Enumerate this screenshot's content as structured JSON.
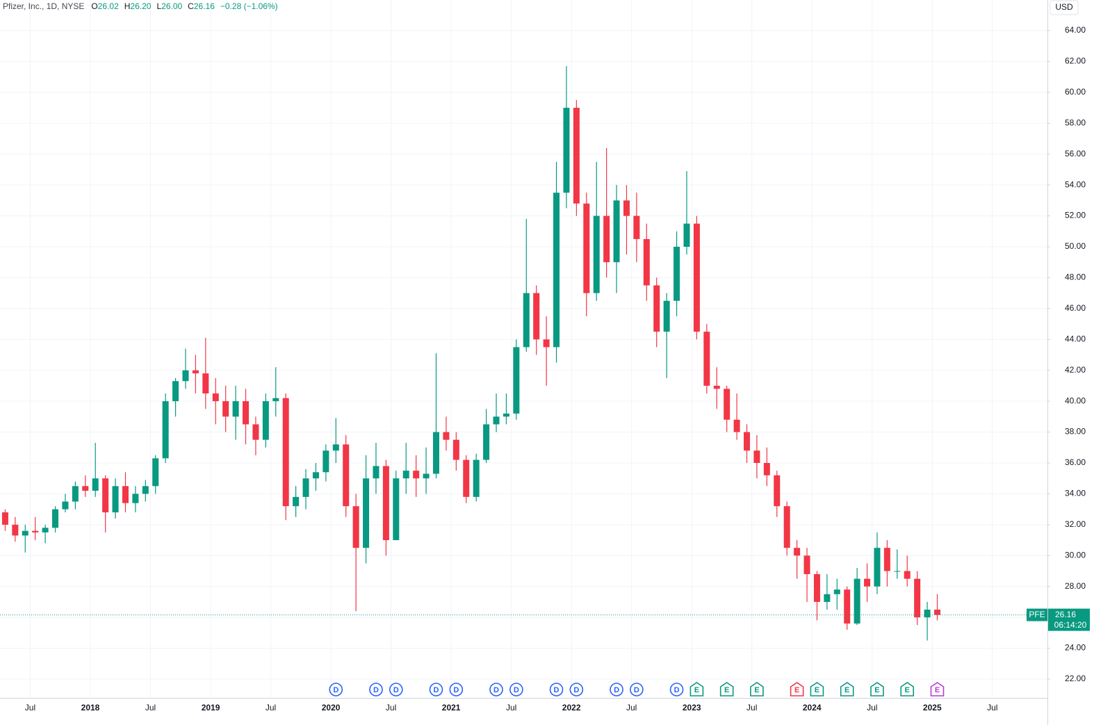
{
  "chart_data": {
    "type": "candlestick",
    "title": "Pfizer, Inc., 1D, NYSE",
    "legend_values": [
      {
        "key": "O",
        "value": "26.02"
      },
      {
        "key": "H",
        "value": "26.20"
      },
      {
        "key": "L",
        "value": "26.00"
      },
      {
        "key": "C",
        "value": "26.16"
      }
    ],
    "change": "−0.28 (−1.06%)",
    "currency": "USD",
    "symbol": "PFE",
    "last_price": {
      "value": 26.16,
      "label": "26.16"
    },
    "countdown": "06:14:20",
    "up_color": "#089981",
    "down_color": "#f23645",
    "grid": true,
    "x": [
      "2017-04",
      "2017-05",
      "2017-06",
      "2017-07",
      "2017-08",
      "2017-09",
      "2017-10",
      "2017-11",
      "2017-12",
      "2018-01",
      "2018-02",
      "2018-03",
      "2018-04",
      "2018-05",
      "2018-06",
      "2018-07",
      "2018-08",
      "2018-09",
      "2018-10",
      "2018-11",
      "2018-12",
      "2019-01",
      "2019-02",
      "2019-03",
      "2019-04",
      "2019-05",
      "2019-06",
      "2019-07",
      "2019-08",
      "2019-09",
      "2019-10",
      "2019-11",
      "2019-12",
      "2020-01",
      "2020-02",
      "2020-03",
      "2020-04",
      "2020-05",
      "2020-06",
      "2020-07",
      "2020-08",
      "2020-09",
      "2020-10",
      "2020-11",
      "2020-12",
      "2021-01",
      "2021-02",
      "2021-03",
      "2021-04",
      "2021-05",
      "2021-06",
      "2021-07",
      "2021-08",
      "2021-09",
      "2021-10",
      "2021-11",
      "2021-12",
      "2022-01",
      "2022-02",
      "2022-03",
      "2022-04",
      "2022-05",
      "2022-06",
      "2022-07",
      "2022-08",
      "2022-09",
      "2022-10",
      "2022-11",
      "2022-12",
      "2023-01",
      "2023-02",
      "2023-03",
      "2023-04",
      "2023-05",
      "2023-06",
      "2023-07",
      "2023-08",
      "2023-09",
      "2023-10",
      "2023-11",
      "2023-12",
      "2024-01",
      "2024-02",
      "2024-03",
      "2024-04",
      "2024-05",
      "2024-06",
      "2024-07",
      "2024-08",
      "2024-09",
      "2024-10",
      "2024-11",
      "2024-12",
      "2025-01"
    ],
    "open": [
      32.8,
      32.0,
      31.3,
      31.6,
      31.5,
      31.8,
      33.0,
      33.5,
      34.5,
      34.2,
      35.0,
      32.8,
      34.5,
      33.4,
      34.0,
      34.5,
      36.3,
      40.0,
      41.3,
      42.0,
      41.8,
      40.5,
      40.0,
      39.0,
      40.0,
      38.5,
      37.5,
      40.0,
      40.2,
      33.2,
      33.8,
      35.0,
      35.4,
      36.8,
      37.2,
      33.2,
      30.5,
      35.0,
      35.8,
      31.0,
      35.0,
      35.5,
      35.0,
      35.3,
      38.0,
      37.5,
      36.2,
      33.8,
      36.2,
      38.5,
      39.0,
      39.2,
      43.5,
      47.0,
      44.0,
      43.5,
      53.5,
      59.0,
      52.8,
      47.0,
      52.0,
      49.0,
      53.0,
      52.0,
      50.5,
      47.5,
      44.5,
      46.5,
      50.0,
      51.5,
      44.5,
      41.0,
      40.8,
      38.8,
      38.0,
      36.8,
      36.0,
      35.2,
      33.2,
      30.5,
      30.0,
      28.8,
      27.0,
      27.5,
      27.8,
      25.6,
      28.5,
      28.0,
      30.5,
      29.0,
      29.0,
      28.5,
      26.0,
      26.5
    ],
    "high": [
      33.0,
      32.5,
      32.0,
      32.5,
      32.0,
      33.2,
      34.0,
      34.8,
      35.2,
      37.3,
      35.2,
      35.0,
      35.4,
      34.5,
      34.9,
      36.5,
      40.5,
      41.5,
      43.4,
      43.0,
      44.1,
      41.5,
      41.0,
      41.0,
      40.8,
      39.0,
      40.5,
      42.2,
      40.5,
      34.5,
      35.6,
      36.0,
      37.2,
      38.9,
      37.8,
      34.0,
      36.5,
      37.3,
      36.2,
      35.5,
      37.3,
      36.5,
      37.0,
      43.1,
      39.0,
      38.0,
      36.5,
      36.6,
      39.5,
      40.5,
      40.5,
      44.0,
      51.8,
      47.5,
      45.5,
      55.5,
      61.7,
      59.5,
      53.5,
      55.5,
      56.4,
      54.0,
      54.0,
      53.5,
      51.5,
      48.0,
      47.0,
      51.0,
      54.9,
      52.0,
      45.0,
      42.2,
      41.0,
      40.5,
      38.5,
      37.8,
      37.0,
      35.5,
      33.5,
      31.0,
      30.5,
      29.0,
      28.8,
      28.5,
      28.0,
      29.2,
      29.5,
      31.5,
      31.0,
      30.4,
      30.0,
      29.0,
      27.0,
      27.5
    ],
    "low": [
      31.6,
      30.9,
      30.2,
      31.0,
      30.8,
      31.5,
      32.8,
      33.0,
      33.8,
      33.8,
      31.5,
      32.4,
      32.8,
      32.8,
      33.5,
      34.0,
      36.0,
      39.0,
      40.8,
      40.5,
      39.5,
      38.5,
      38.0,
      37.5,
      37.2,
      36.5,
      37.0,
      39.0,
      32.3,
      32.5,
      33.0,
      34.2,
      34.8,
      36.0,
      32.5,
      26.4,
      29.5,
      34.0,
      30.0,
      31.0,
      34.0,
      33.8,
      34.0,
      35.0,
      36.8,
      35.5,
      33.4,
      33.5,
      36.0,
      38.0,
      38.5,
      38.8,
      43.2,
      43.0,
      41.0,
      42.5,
      52.5,
      52.0,
      45.5,
      46.5,
      48.0,
      47.0,
      49.5,
      49.0,
      46.5,
      43.5,
      41.5,
      45.5,
      49.5,
      44.0,
      40.5,
      39.5,
      38.0,
      37.5,
      36.0,
      35.0,
      34.5,
      32.5,
      30.0,
      28.5,
      27.0,
      25.8,
      26.5,
      26.5,
      25.2,
      25.5,
      27.0,
      27.5,
      28.0,
      28.5,
      28.0,
      25.5,
      24.5,
      25.8
    ],
    "close": [
      32.0,
      31.3,
      31.6,
      31.5,
      31.8,
      33.0,
      33.5,
      34.5,
      34.2,
      35.0,
      32.8,
      34.5,
      33.4,
      34.0,
      34.5,
      36.3,
      40.0,
      41.3,
      42.0,
      41.8,
      40.5,
      40.0,
      39.0,
      40.0,
      38.5,
      37.5,
      40.0,
      40.2,
      33.2,
      33.8,
      35.0,
      35.4,
      36.8,
      37.2,
      33.2,
      30.5,
      35.0,
      35.8,
      31.0,
      35.0,
      35.5,
      35.0,
      35.3,
      38.0,
      37.5,
      36.2,
      33.8,
      36.2,
      38.5,
      39.0,
      39.2,
      43.5,
      47.0,
      44.0,
      43.5,
      53.5,
      59.0,
      52.8,
      47.0,
      52.0,
      49.0,
      53.0,
      52.0,
      50.5,
      47.5,
      44.5,
      46.5,
      50.0,
      51.5,
      44.5,
      41.0,
      40.8,
      38.8,
      38.0,
      36.8,
      36.0,
      35.2,
      33.2,
      30.5,
      30.0,
      28.8,
      27.0,
      27.5,
      27.8,
      25.6,
      28.5,
      28.0,
      30.5,
      29.0,
      29.0,
      28.5,
      26.0,
      26.5,
      26.16
    ],
    "ylim": [
      21.0,
      65.0
    ],
    "yticks": [
      {
        "value": 22,
        "label": "22.00"
      },
      {
        "value": 24,
        "label": "24.00"
      },
      {
        "value": 26,
        "label": "26.00"
      },
      {
        "value": 28,
        "label": "28.00"
      },
      {
        "value": 30,
        "label": "30.00"
      },
      {
        "value": 32,
        "label": "32.00"
      },
      {
        "value": 34,
        "label": "34.00"
      },
      {
        "value": 36,
        "label": "36.00"
      },
      {
        "value": 38,
        "label": "38.00"
      },
      {
        "value": 40,
        "label": "40.00"
      },
      {
        "value": 42,
        "label": "42.00"
      },
      {
        "value": 44,
        "label": "44.00"
      },
      {
        "value": 46,
        "label": "46.00"
      },
      {
        "value": 48,
        "label": "48.00"
      },
      {
        "value": 50,
        "label": "50.00"
      },
      {
        "value": 52,
        "label": "52.00"
      },
      {
        "value": 54,
        "label": "54.00"
      },
      {
        "value": 56,
        "label": "56.00"
      },
      {
        "value": 58,
        "label": "58.00"
      },
      {
        "value": 60,
        "label": "60.00"
      },
      {
        "value": 62,
        "label": "62.00"
      },
      {
        "value": 64,
        "label": "64.00"
      }
    ],
    "xticks": [
      {
        "value": "2017-07",
        "label": "Jul"
      },
      {
        "value": "2018-01",
        "label": "2018"
      },
      {
        "value": "2018-07",
        "label": "Jul"
      },
      {
        "value": "2019-01",
        "label": "2019"
      },
      {
        "value": "2019-07",
        "label": "Jul"
      },
      {
        "value": "2020-01",
        "label": "2020"
      },
      {
        "value": "2020-07",
        "label": "Jul"
      },
      {
        "value": "2021-01",
        "label": "2021"
      },
      {
        "value": "2021-07",
        "label": "Jul"
      },
      {
        "value": "2022-01",
        "label": "2022"
      },
      {
        "value": "2022-07",
        "label": "Jul"
      },
      {
        "value": "2023-01",
        "label": "2023"
      },
      {
        "value": "2023-07",
        "label": "Jul"
      },
      {
        "value": "2024-01",
        "label": "2024"
      },
      {
        "value": "2024-07",
        "label": "Jul"
      },
      {
        "value": "2025-01",
        "label": "2025"
      },
      {
        "value": "2025-07",
        "label": "Jul"
      }
    ],
    "events": [
      {
        "x": "2020-01",
        "label": "D",
        "color": "#2962ff"
      },
      {
        "x": "2020-05",
        "label": "D",
        "color": "#2962ff"
      },
      {
        "x": "2020-07",
        "label": "D",
        "color": "#2962ff"
      },
      {
        "x": "2020-11",
        "label": "D",
        "color": "#2962ff"
      },
      {
        "x": "2021-01",
        "label": "D",
        "color": "#2962ff"
      },
      {
        "x": "2021-05",
        "label": "D",
        "color": "#2962ff"
      },
      {
        "x": "2021-07",
        "label": "D",
        "color": "#2962ff"
      },
      {
        "x": "2021-11",
        "label": "D",
        "color": "#2962ff"
      },
      {
        "x": "2022-01",
        "label": "D",
        "color": "#2962ff"
      },
      {
        "x": "2022-05",
        "label": "D",
        "color": "#2962ff"
      },
      {
        "x": "2022-07",
        "label": "D",
        "color": "#2962ff"
      },
      {
        "x": "2022-11",
        "label": "D",
        "color": "#2962ff"
      },
      {
        "x": "2023-01",
        "label": "E",
        "color": "#089981"
      },
      {
        "x": "2023-04",
        "label": "E",
        "color": "#089981"
      },
      {
        "x": "2023-07",
        "label": "E",
        "color": "#089981"
      },
      {
        "x": "2023-11",
        "label": "E",
        "color": "#f23645"
      },
      {
        "x": "2024-01",
        "label": "E",
        "color": "#089981"
      },
      {
        "x": "2024-04",
        "label": "E",
        "color": "#089981"
      },
      {
        "x": "2024-07",
        "label": "E",
        "color": "#089981"
      },
      {
        "x": "2024-10",
        "label": "E",
        "color": "#089981"
      },
      {
        "x": "2025-01",
        "label": "E",
        "color": "#b63ad6"
      }
    ]
  }
}
